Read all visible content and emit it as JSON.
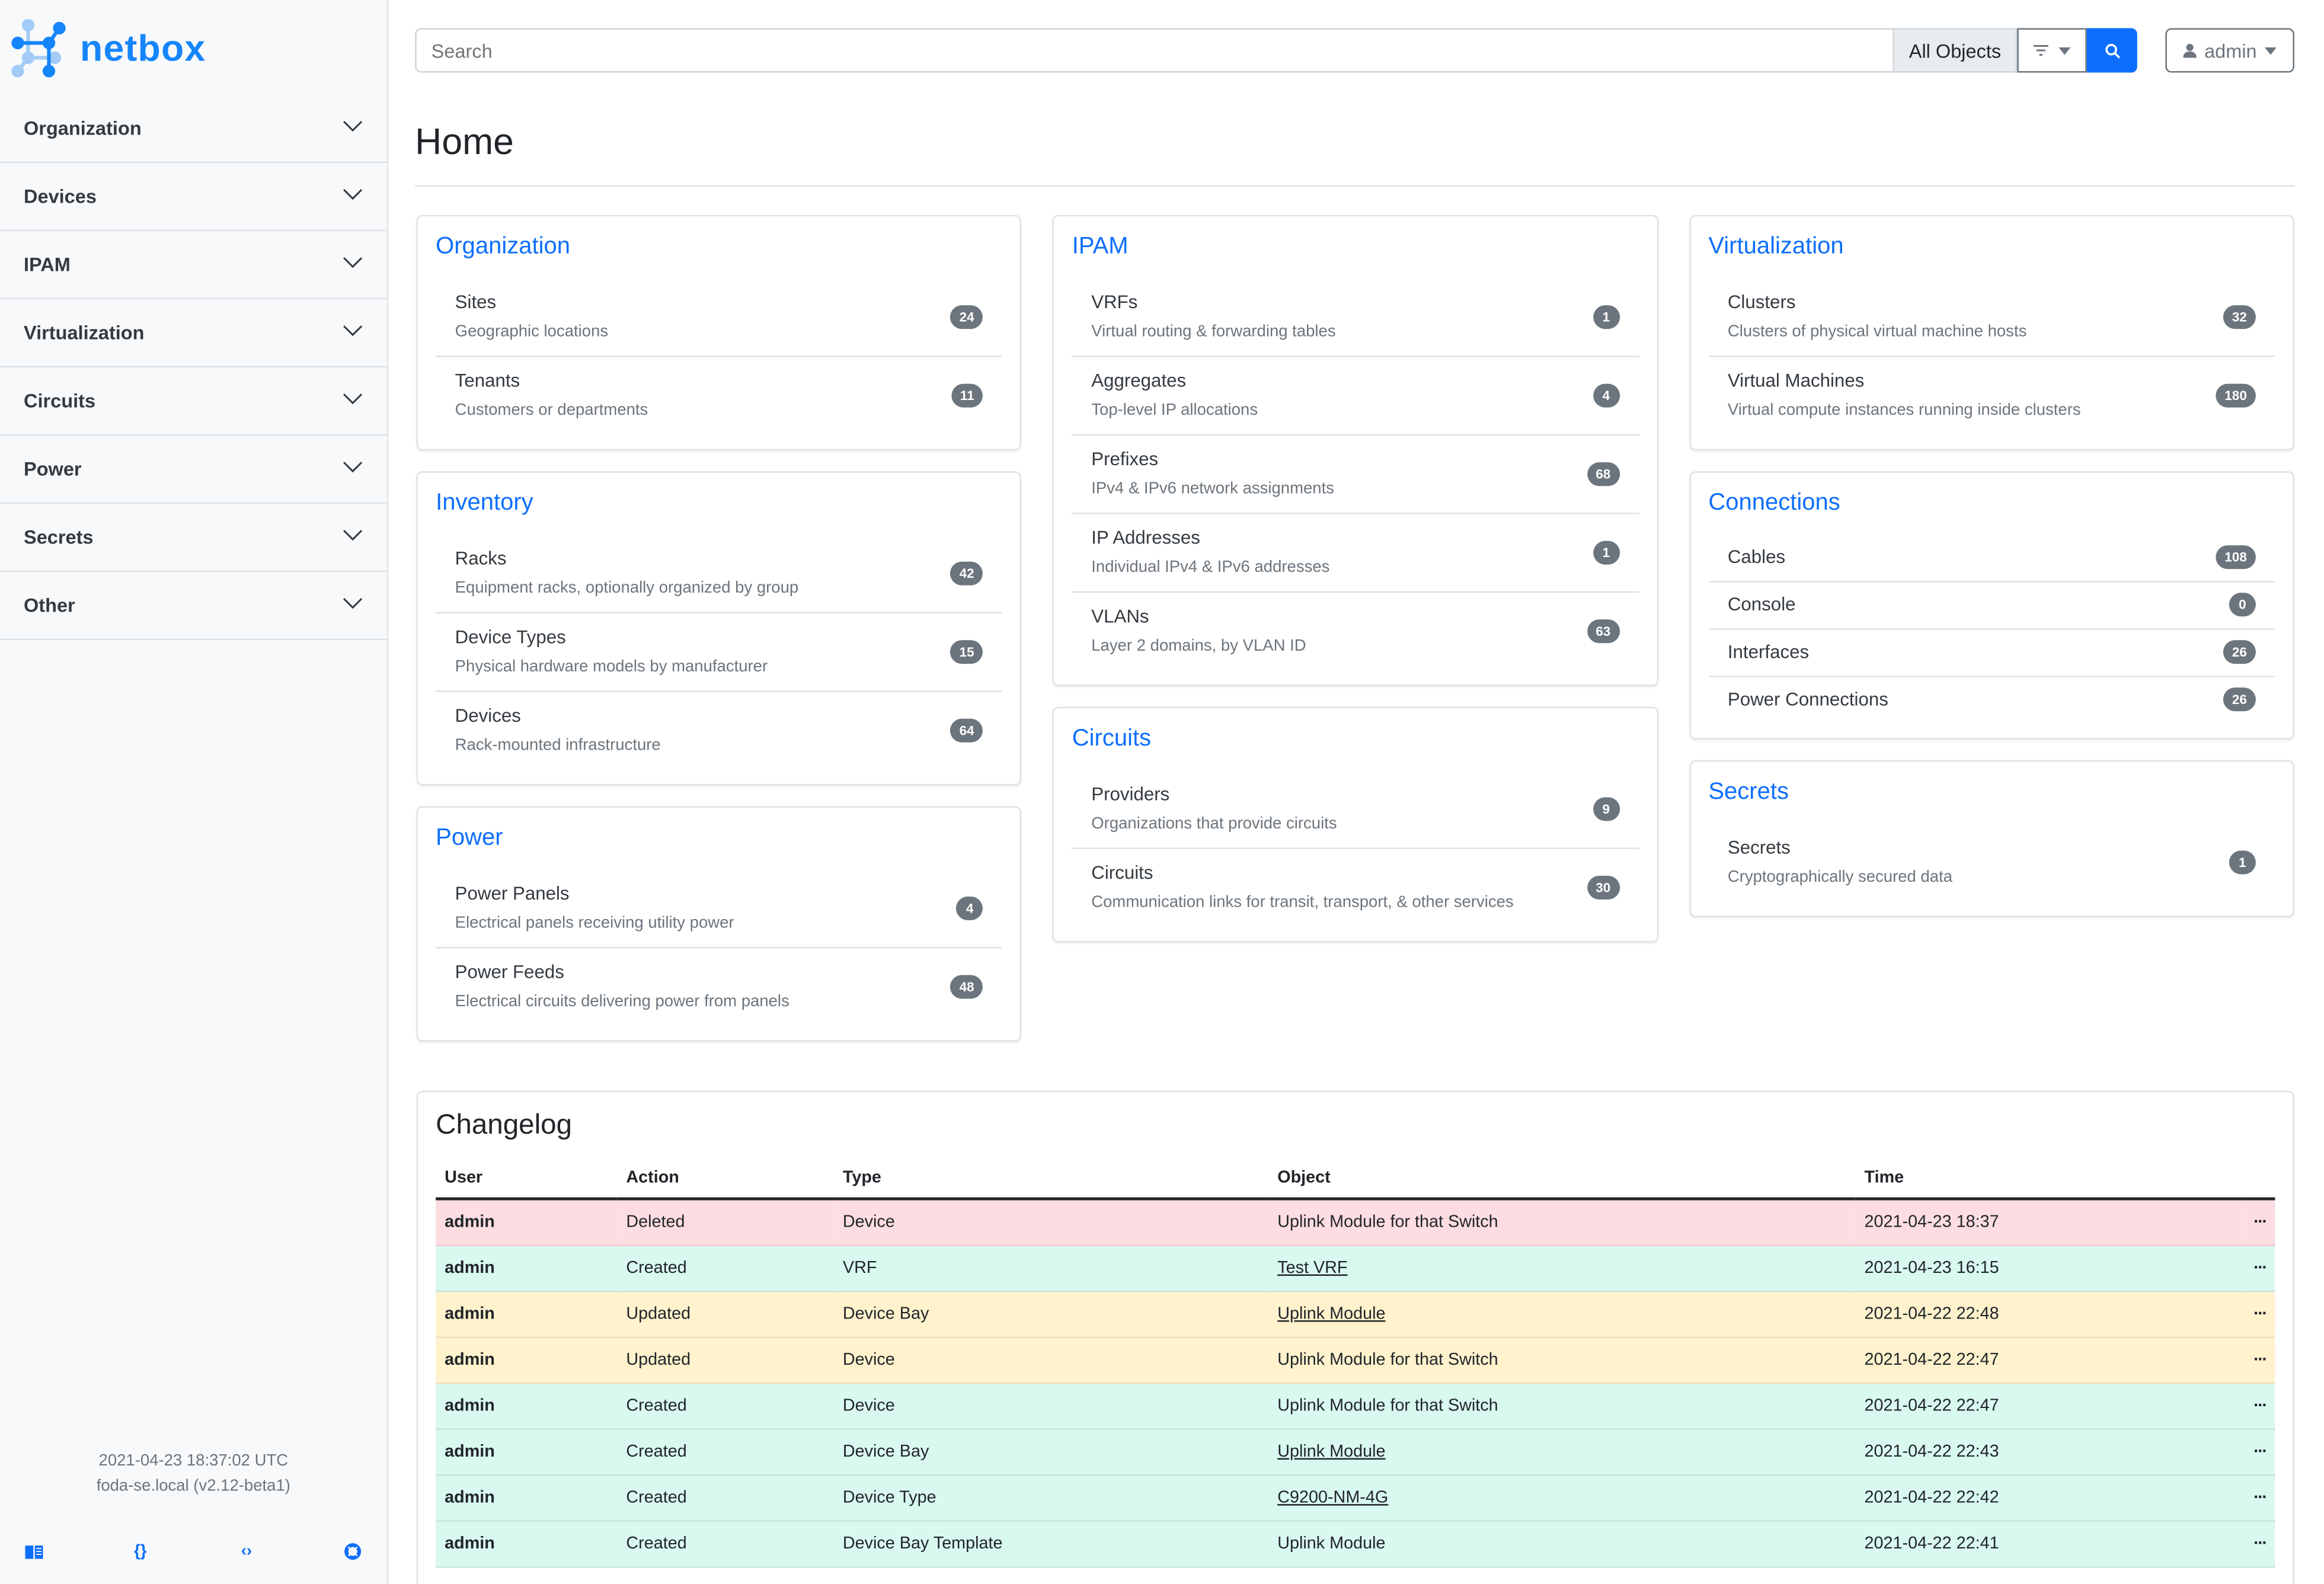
{
  "brand": {
    "name": "netbox",
    "primary": "#0d6efd",
    "logo": "#1685fc"
  },
  "sidebar": {
    "items": [
      {
        "label": "Organization"
      },
      {
        "label": "Devices"
      },
      {
        "label": "IPAM"
      },
      {
        "label": "Virtualization"
      },
      {
        "label": "Circuits"
      },
      {
        "label": "Power"
      },
      {
        "label": "Secrets"
      },
      {
        "label": "Other"
      }
    ],
    "footer": {
      "time": "2021-04-23 18:37:02 UTC",
      "host": "foda-se.local (v2.12-beta1)"
    },
    "icons": [
      "book-icon",
      "braces-icon",
      "code-icon",
      "lifebuoy-icon"
    ]
  },
  "search": {
    "placeholder": "Search",
    "scope": "All Objects"
  },
  "user": {
    "label": "admin"
  },
  "page": {
    "title": "Home"
  },
  "columns": [
    [
      {
        "title": "Organization",
        "items": [
          {
            "name": "Sites",
            "desc": "Geographic locations",
            "count": "24"
          },
          {
            "name": "Tenants",
            "desc": "Customers or departments",
            "count": "11"
          }
        ]
      },
      {
        "title": "Inventory",
        "items": [
          {
            "name": "Racks",
            "desc": "Equipment racks, optionally organized by group",
            "count": "42"
          },
          {
            "name": "Device Types",
            "desc": "Physical hardware models by manufacturer",
            "count": "15"
          },
          {
            "name": "Devices",
            "desc": "Rack-mounted infrastructure",
            "count": "64"
          }
        ]
      },
      {
        "title": "Power",
        "items": [
          {
            "name": "Power Panels",
            "desc": "Electrical panels receiving utility power",
            "count": "4"
          },
          {
            "name": "Power Feeds",
            "desc": "Electrical circuits delivering power from panels",
            "count": "48"
          }
        ]
      }
    ],
    [
      {
        "title": "IPAM",
        "items": [
          {
            "name": "VRFs",
            "desc": "Virtual routing & forwarding tables",
            "count": "1"
          },
          {
            "name": "Aggregates",
            "desc": "Top-level IP allocations",
            "count": "4"
          },
          {
            "name": "Prefixes",
            "desc": "IPv4 & IPv6 network assignments",
            "count": "68"
          },
          {
            "name": "IP Addresses",
            "desc": "Individual IPv4 & IPv6 addresses",
            "count": "1"
          },
          {
            "name": "VLANs",
            "desc": "Layer 2 domains, by VLAN ID",
            "count": "63"
          }
        ]
      },
      {
        "title": "Circuits",
        "items": [
          {
            "name": "Providers",
            "desc": "Organizations that provide circuits",
            "count": "9"
          },
          {
            "name": "Circuits",
            "desc": "Communication links for transit, transport, & other services",
            "count": "30"
          }
        ]
      }
    ],
    [
      {
        "title": "Virtualization",
        "items": [
          {
            "name": "Clusters",
            "desc": "Clusters of physical virtual machine hosts",
            "count": "32"
          },
          {
            "name": "Virtual Machines",
            "desc": "Virtual compute instances running inside clusters",
            "count": "180"
          }
        ]
      },
      {
        "title": "Connections",
        "items": [
          {
            "name": "Cables",
            "count": "108"
          },
          {
            "name": "Console",
            "count": "0"
          },
          {
            "name": "Interfaces",
            "count": "26"
          },
          {
            "name": "Power Connections",
            "count": "26"
          }
        ]
      },
      {
        "title": "Secrets",
        "items": [
          {
            "name": "Secrets",
            "desc": "Cryptographically secured data",
            "count": "1"
          }
        ]
      }
    ]
  ],
  "changelog": {
    "title": "Changelog",
    "headers": [
      "User",
      "Action",
      "Type",
      "Object",
      "Time",
      ""
    ],
    "action_colors": {
      "Deleted": "#fddde1",
      "Created": "#d9f8f0",
      "Updated": "#fff2cd"
    },
    "rows": [
      {
        "user": "admin",
        "action": "Deleted",
        "type": "Device",
        "object": "Uplink Module for that Switch",
        "link": false,
        "time": "2021-04-23 18:37"
      },
      {
        "user": "admin",
        "action": "Created",
        "type": "VRF",
        "object": "Test VRF",
        "link": true,
        "time": "2021-04-23 16:15"
      },
      {
        "user": "admin",
        "action": "Updated",
        "type": "Device Bay",
        "object": "Uplink Module",
        "link": true,
        "time": "2021-04-22 22:48"
      },
      {
        "user": "admin",
        "action": "Updated",
        "type": "Device",
        "object": "Uplink Module for that Switch",
        "link": false,
        "time": "2021-04-22 22:47"
      },
      {
        "user": "admin",
        "action": "Created",
        "type": "Device",
        "object": "Uplink Module for that Switch",
        "link": false,
        "time": "2021-04-22 22:47"
      },
      {
        "user": "admin",
        "action": "Created",
        "type": "Device Bay",
        "object": "Uplink Module",
        "link": true,
        "time": "2021-04-22 22:43"
      },
      {
        "user": "admin",
        "action": "Created",
        "type": "Device Type",
        "object": "C9200-NM-4G",
        "link": true,
        "time": "2021-04-22 22:42"
      },
      {
        "user": "admin",
        "action": "Created",
        "type": "Device Bay Template",
        "object": "Uplink Module",
        "link": false,
        "time": "2021-04-22 22:41"
      }
    ],
    "more_label": "···"
  }
}
